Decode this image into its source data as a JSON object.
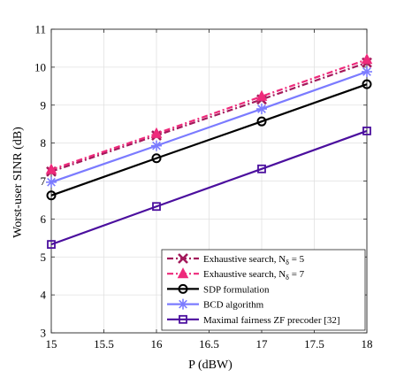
{
  "chart_data": {
    "type": "line",
    "title": "",
    "xlabel": "P (dBW)",
    "ylabel": "Worst-user SINR (dB)",
    "xlim": [
      15,
      18
    ],
    "ylim": [
      3,
      11
    ],
    "xticks": [
      "15",
      "15.5",
      "16",
      "16.5",
      "17",
      "17.5",
      "18"
    ],
    "yticks": [
      "3",
      "4",
      "5",
      "6",
      "7",
      "8",
      "9",
      "10",
      "11"
    ],
    "grid": true,
    "legend_position": "bottom-right",
    "x": [
      15,
      16,
      17,
      18
    ],
    "series": [
      {
        "name_main": "Exhaustive search, N",
        "name_sub": "δ",
        "name_tail": " = 5",
        "values": [
          7.25,
          8.2,
          9.15,
          10.12
        ],
        "color": "#a3195b",
        "marker": "x-cross",
        "dash": "dashdot"
      },
      {
        "name_main": "Exhaustive search, N",
        "name_sub": "δ",
        "name_tail": " = 7",
        "values": [
          7.3,
          8.25,
          9.23,
          10.2
        ],
        "color": "#ee2a7b",
        "marker": "triangle",
        "dash": "dashdot"
      },
      {
        "name_main": "SDP formulation",
        "name_sub": "",
        "name_tail": "",
        "values": [
          6.62,
          7.6,
          8.57,
          9.55
        ],
        "color": "#000000",
        "marker": "circle",
        "dash": "solid"
      },
      {
        "name_main": "BCD algorithm",
        "name_sub": "",
        "name_tail": "",
        "values": [
          6.97,
          7.93,
          8.9,
          9.88
        ],
        "color": "#7b7bff",
        "marker": "star",
        "dash": "solid"
      },
      {
        "name_main": "Maximal fairness ZF precoder [32]",
        "name_sub": "",
        "name_tail": "",
        "values": [
          5.33,
          6.33,
          7.32,
          8.32
        ],
        "color": "#4b0f9e",
        "marker": "square",
        "dash": "solid"
      }
    ]
  }
}
